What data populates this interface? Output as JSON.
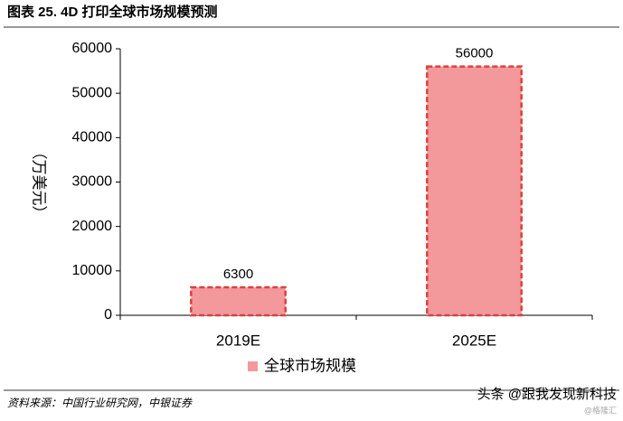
{
  "chart_data": {
    "type": "bar",
    "title": "图表 25. 4D 打印全球市场规模预测",
    "y_label": "（万美元）",
    "categories": [
      "2019E",
      "2025E"
    ],
    "series": [
      {
        "name": "全球市场规模",
        "color": "#f4999b",
        "values": [
          6300,
          56000
        ]
      }
    ],
    "ylim": [
      0,
      60000
    ],
    "yticks": [
      0,
      10000,
      20000,
      30000,
      40000,
      50000,
      60000
    ],
    "legend": "bottom"
  },
  "footer": {
    "source": "资料来源：中国行业研究网，中银证券",
    "watermark": "头条 @跟我发现新科技",
    "mark": "@格隆汇"
  }
}
